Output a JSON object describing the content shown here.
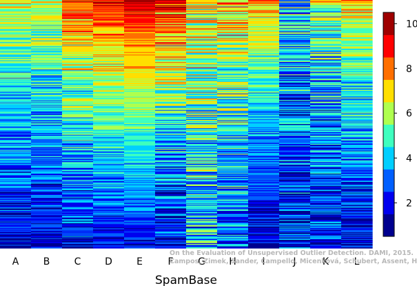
{
  "chart_data": {
    "type": "heatmap",
    "title": "",
    "xlabel": "SpamBase",
    "ylabel": "",
    "columns": [
      "A",
      "B",
      "C",
      "D",
      "E",
      "F",
      "G",
      "H",
      "I",
      "J",
      "K",
      "L"
    ],
    "num_rows": 300,
    "row_order": "descending outlier rank, top to bottom",
    "colorbar": {
      "ticks": [
        2,
        4,
        6,
        8,
        10
      ],
      "range": [
        0.5,
        10.5
      ],
      "levels": 10,
      "colormap": "jet",
      "colors": [
        "#00008f",
        "#0000ef",
        "#005fff",
        "#00cfff",
        "#3fffbf",
        "#afff4f",
        "#ffdf00",
        "#ff6f00",
        "#ff0000",
        "#9f0000"
      ]
    },
    "column_profiles": [
      {
        "column": "A",
        "top": 6.8,
        "bottom": 1.6,
        "noise": 1.6
      },
      {
        "column": "B",
        "top": 6.6,
        "bottom": 1.6,
        "noise": 1.6
      },
      {
        "column": "C",
        "top": 8.4,
        "bottom": 1.8,
        "noise": 1.8
      },
      {
        "column": "D",
        "top": 9.3,
        "bottom": 1.9,
        "noise": 1.3
      },
      {
        "column": "E",
        "top": 9.9,
        "bottom": 2.0,
        "noise": 1.0
      },
      {
        "column": "F",
        "top": 9.0,
        "bottom": 1.6,
        "noise": 2.0
      },
      {
        "column": "G",
        "top": 6.8,
        "bottom": 3.6,
        "noise": 2.4
      },
      {
        "column": "H",
        "top": 7.5,
        "bottom": 2.8,
        "noise": 2.2
      },
      {
        "column": "I",
        "top": 7.6,
        "bottom": 1.3,
        "noise": 1.3
      },
      {
        "column": "J",
        "top": 4.6,
        "bottom": 1.9,
        "noise": 2.4
      },
      {
        "column": "K",
        "top": 5.8,
        "bottom": 1.8,
        "noise": 2.2
      },
      {
        "column": "L",
        "top": 7.4,
        "bottom": 1.5,
        "noise": 1.6
      }
    ]
  },
  "watermark": {
    "line1": "On the Evaluation of Unsupervised Outlier Detection. DAMI, 2015.",
    "line2": "Campos, Zimek, Sander, Campello, Micenková, Schubert, Assent, Houle"
  }
}
